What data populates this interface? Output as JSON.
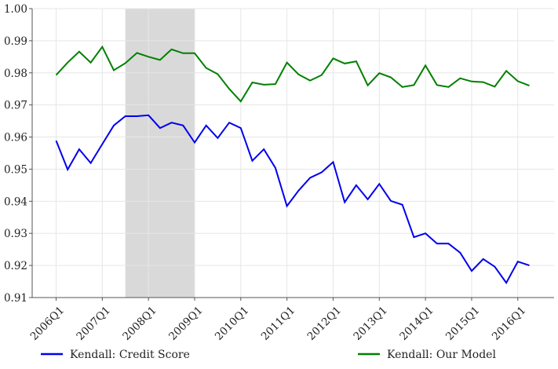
{
  "chart_data": {
    "type": "line",
    "title": "",
    "xlabel": "",
    "ylabel": "",
    "ylim": [
      0.91,
      1.0
    ],
    "yticks": [
      "0.91",
      "0.92",
      "0.93",
      "0.94",
      "0.95",
      "0.96",
      "0.97",
      "0.98",
      "0.99",
      "1.00"
    ],
    "xtick_labels": [
      "2006Q1",
      "2007Q1",
      "2008Q1",
      "2009Q1",
      "2010Q1",
      "2011Q1",
      "2012Q1",
      "2013Q1",
      "2014Q1",
      "2015Q1",
      "2016Q1"
    ],
    "x": [
      "2006Q1",
      "2006Q2",
      "2006Q3",
      "2006Q4",
      "2007Q1",
      "2007Q2",
      "2007Q3",
      "2007Q4",
      "2008Q1",
      "2008Q2",
      "2008Q3",
      "2008Q4",
      "2009Q1",
      "2009Q2",
      "2009Q3",
      "2009Q4",
      "2010Q1",
      "2010Q2",
      "2010Q3",
      "2010Q4",
      "2011Q1",
      "2011Q2",
      "2011Q3",
      "2011Q4",
      "2012Q1",
      "2012Q2",
      "2012Q3",
      "2012Q4",
      "2013Q1",
      "2013Q2",
      "2013Q3",
      "2013Q4",
      "2014Q1",
      "2014Q2",
      "2014Q3",
      "2014Q4",
      "2015Q1",
      "2015Q2",
      "2015Q3",
      "2015Q4",
      "2016Q1",
      "2016Q2"
    ],
    "shaded_region": {
      "start": "2007Q3",
      "end": "2009Q1",
      "color": "#d9d9d9"
    },
    "grid": true,
    "legend_position": "bottom",
    "series": [
      {
        "name": "Kendall: Credit Score",
        "color": "#0000ee",
        "values": [
          0.9589,
          0.9499,
          0.9562,
          0.9519,
          0.9578,
          0.9636,
          0.9665,
          0.9665,
          0.9668,
          0.9628,
          0.9645,
          0.9636,
          0.9583,
          0.9636,
          0.9597,
          0.9645,
          0.9628,
          0.9526,
          0.9562,
          0.9504,
          0.9385,
          0.9433,
          0.9473,
          0.949,
          0.9522,
          0.9397,
          0.945,
          0.9406,
          0.9454,
          0.9401,
          0.9389,
          0.9288,
          0.93,
          0.9268,
          0.9268,
          0.924,
          0.9183,
          0.922,
          0.9196,
          0.9146,
          0.9212,
          0.92
        ]
      },
      {
        "name": "Kendall: Our Model",
        "color": "#008000",
        "values": [
          0.9793,
          0.9832,
          0.9866,
          0.9832,
          0.9881,
          0.9808,
          0.983,
          0.9862,
          0.985,
          0.984,
          0.9873,
          0.9861,
          0.9861,
          0.9815,
          0.9796,
          0.975,
          0.9711,
          0.977,
          0.9763,
          0.9765,
          0.9832,
          0.9795,
          0.9776,
          0.9793,
          0.9845,
          0.9829,
          0.9836,
          0.9761,
          0.9799,
          0.9786,
          0.9756,
          0.9762,
          0.9823,
          0.9762,
          0.9756,
          0.9783,
          0.9773,
          0.9771,
          0.9757,
          0.9806,
          0.9774,
          0.976
        ]
      }
    ]
  }
}
